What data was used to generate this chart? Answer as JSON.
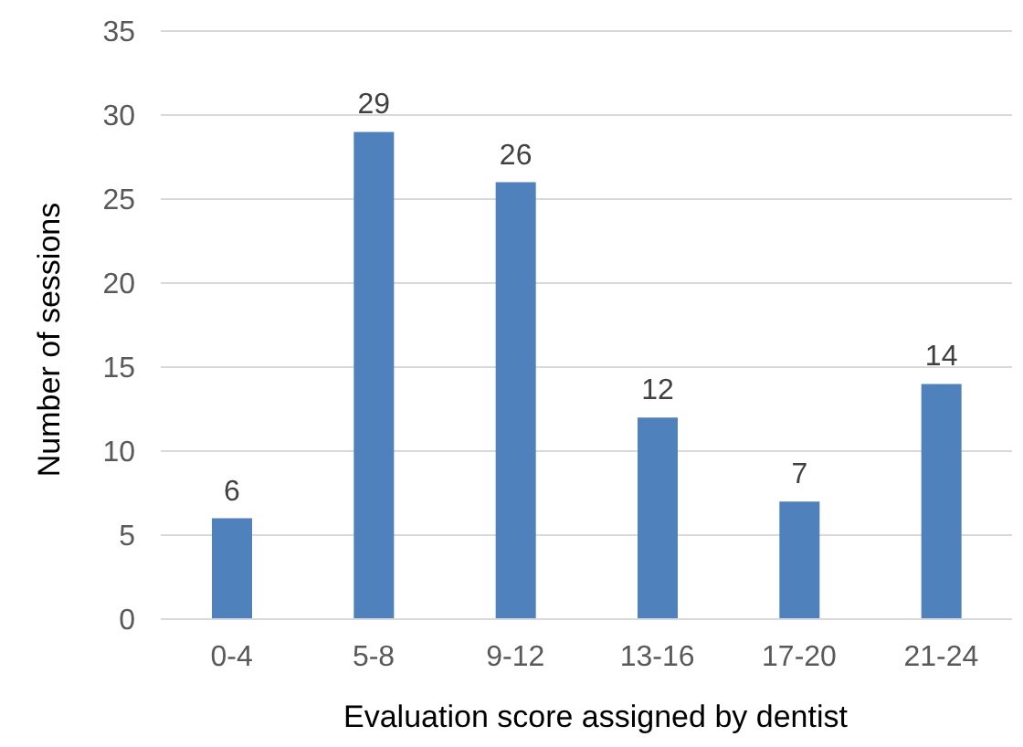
{
  "chart_data": {
    "type": "bar",
    "xlabel": "Evaluation score assigned by dentist",
    "ylabel": "Number of sessions",
    "categories": [
      "0-4",
      "5-8",
      "9-12",
      "13-16",
      "17-20",
      "21-24"
    ],
    "values": [
      6,
      29,
      26,
      12,
      7,
      14
    ],
    "color": "#4f81bd",
    "ylim": [
      0,
      35
    ],
    "yticks": [
      0,
      5,
      10,
      15,
      20,
      25,
      30,
      35
    ],
    "grid": "y",
    "data_labels": true
  }
}
